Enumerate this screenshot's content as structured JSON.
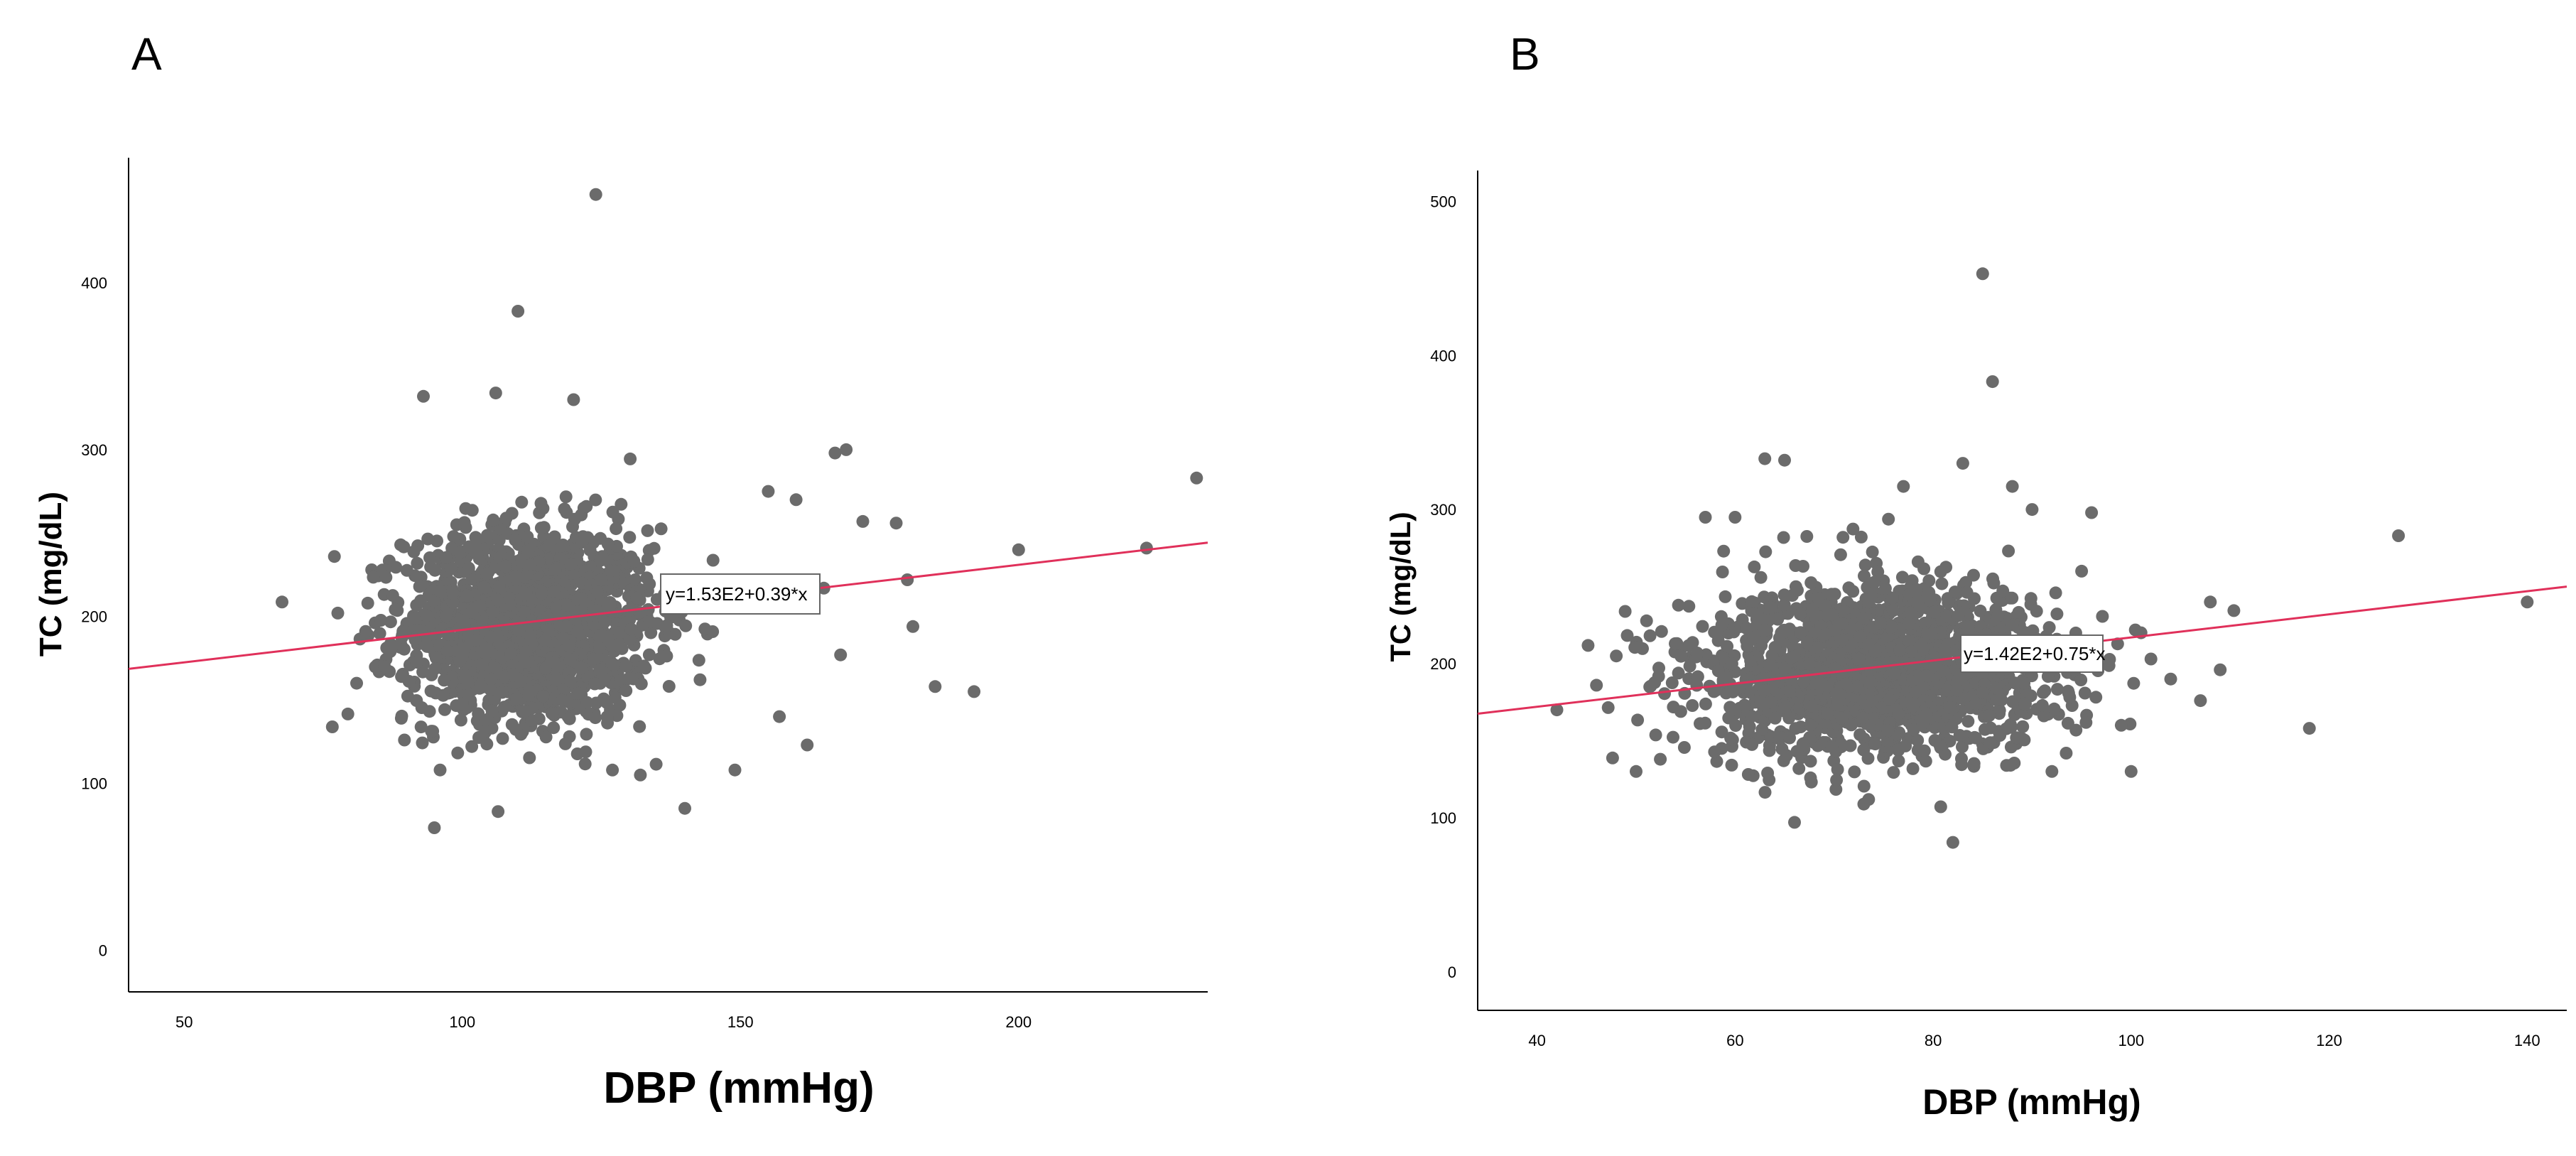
{
  "chart_data": [
    {
      "panel": "A",
      "type": "scatter",
      "xlabel": "DBP (mmHg)",
      "ylabel": "TC (mg/dL)",
      "xticks": [
        50,
        100,
        150,
        200
      ],
      "yticks": [
        0,
        100,
        200,
        300,
        400
      ],
      "xlim": [
        40,
        234
      ],
      "ylim": [
        -25,
        475
      ],
      "fit_line": {
        "intercept": 153,
        "slope": 0.39,
        "label": "y=1.53E2+0.39*x"
      },
      "point_color": "#6b6b6b",
      "line_color": "#e0305a",
      "cluster": {
        "x_mean": 112,
        "x_sd": 11,
        "y_mean": 195,
        "y_sd": 29
      },
      "outliers": [
        [
          124,
          453
        ],
        [
          110,
          383
        ],
        [
          106,
          334
        ],
        [
          93,
          332
        ],
        [
          120,
          330
        ],
        [
          77,
          236
        ],
        [
          169,
          300
        ],
        [
          167,
          298
        ],
        [
          172,
          257
        ],
        [
          178,
          256
        ],
        [
          180,
          222
        ],
        [
          181,
          194
        ],
        [
          185,
          158
        ],
        [
          192,
          155
        ],
        [
          200,
          240
        ],
        [
          223,
          241
        ],
        [
          232,
          283
        ],
        [
          140,
          85
        ],
        [
          149,
          108
        ],
        [
          162,
          123
        ],
        [
          157,
          140
        ],
        [
          168,
          177
        ],
        [
          165,
          217
        ],
        [
          160,
          270
        ],
        [
          155,
          275
        ],
        [
          83,
          208
        ],
        [
          81,
          160
        ],
        [
          86,
          170
        ],
        [
          96,
          108
        ],
        [
          132,
          105
        ]
      ]
    },
    {
      "panel": "B",
      "type": "scatter",
      "xlabel": "DBP (mmHg)",
      "ylabel": "TC (mg/dL)",
      "xticks": [
        40,
        60,
        80,
        100,
        120,
        140
      ],
      "yticks": [
        0,
        100,
        200,
        300,
        400,
        500
      ],
      "xlim": [
        34,
        144
      ],
      "ylim": [
        -25,
        520
      ],
      "fit_line": {
        "intercept": 142,
        "slope": 0.75,
        "label": "y=1.42E2+0.75*x"
      },
      "point_color": "#6b6b6b",
      "line_color": "#e0305a",
      "cluster": {
        "x_mean": 74,
        "x_sd": 9,
        "y_mean": 195,
        "y_sd": 28
      },
      "outliers": [
        [
          85,
          453
        ],
        [
          86,
          383
        ],
        [
          63,
          333
        ],
        [
          65,
          332
        ],
        [
          83,
          330
        ],
        [
          42,
          170
        ],
        [
          46,
          186
        ],
        [
          140,
          240
        ],
        [
          127,
          283
        ],
        [
          118,
          158
        ],
        [
          109,
          196
        ],
        [
          108,
          240
        ],
        [
          107,
          176
        ],
        [
          104,
          190
        ],
        [
          102,
          203
        ],
        [
          82,
          84
        ],
        [
          66,
          97
        ],
        [
          57,
          295
        ],
        [
          60,
          295
        ],
        [
          96,
          298
        ],
        [
          100,
          130
        ],
        [
          99,
          160
        ],
        [
          101,
          220
        ],
        [
          50,
          130
        ],
        [
          48,
          205
        ],
        [
          95,
          260
        ],
        [
          90,
          300
        ],
        [
          88,
          315
        ],
        [
          77,
          315
        ],
        [
          92,
          130
        ]
      ]
    }
  ]
}
